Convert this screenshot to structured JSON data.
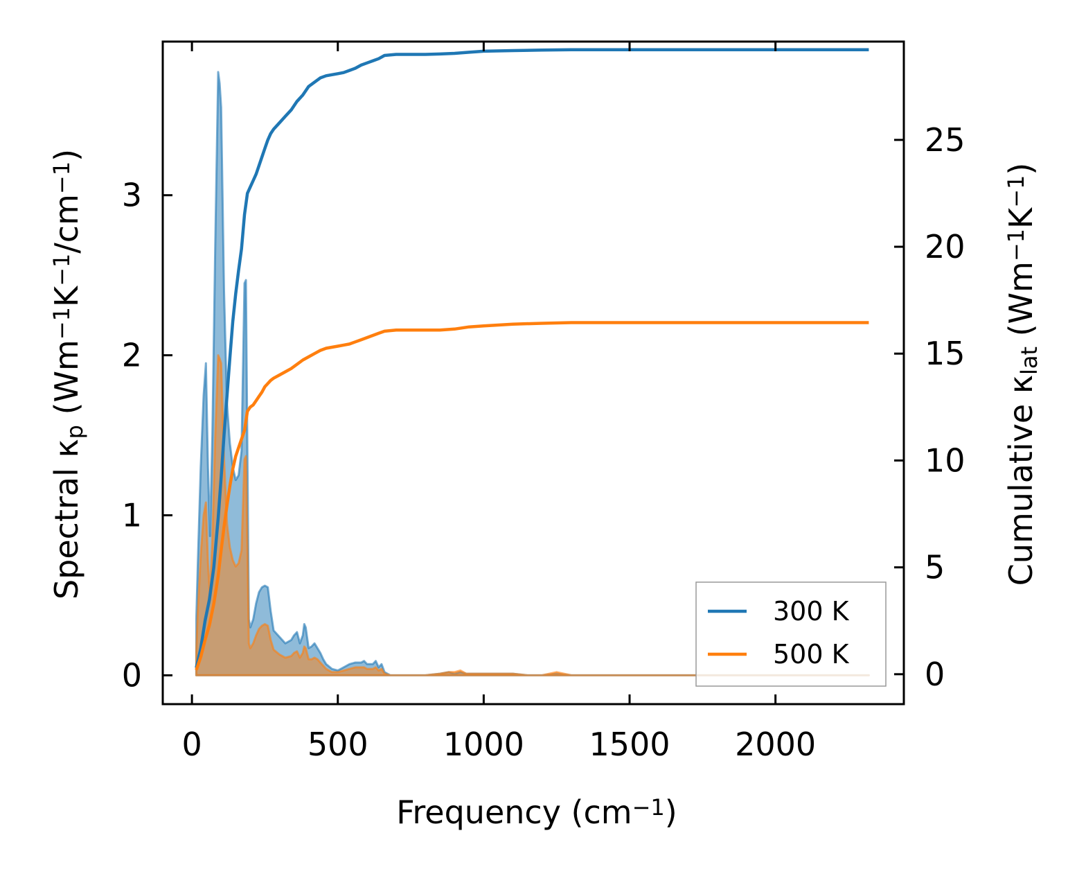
{
  "chart_data": {
    "type": "line",
    "xlabel": "Frequency (cm",
    "xlabel_sup": "−1",
    "xlabel_end": ")",
    "ylabel_left": {
      "pre": "Spectral κ",
      "sub": "p",
      "mid1": " (Wm",
      "sup1": "−1",
      "mid2": "K",
      "sup2": "−1",
      "mid3": "/cm",
      "sup3": "−1",
      "end": ")"
    },
    "ylabel_right": {
      "pre": "Cumulative κ",
      "sub": "lat",
      "mid1": " (Wm",
      "sup1": "−1",
      "mid2": "K",
      "sup2": "−1",
      "end": ")"
    },
    "xlim": [
      -100,
      2440
    ],
    "ylim_left": [
      -0.18,
      3.96
    ],
    "ylim_right": [
      -1.4,
      29.6
    ],
    "xticks": [
      0,
      500,
      1000,
      1500,
      2000
    ],
    "xtick_labels": [
      "0",
      "500",
      "1000",
      "1500",
      "2000"
    ],
    "yticks_left": [
      0,
      1,
      2,
      3
    ],
    "ytick_left_labels": [
      "0",
      "1",
      "2",
      "3"
    ],
    "yticks_right": [
      0,
      5,
      10,
      15,
      20,
      25
    ],
    "ytick_right_labels": [
      "0",
      "5",
      "10",
      "15",
      "20",
      "25"
    ],
    "grid": false,
    "legend_position": "bottom-right",
    "colors": {
      "s300": "#1f77b4",
      "s500": "#ff7f0e"
    },
    "spectral": [
      {
        "name": "300 K",
        "x": [
          15,
          20,
          30,
          40,
          48,
          55,
          62,
          70,
          80,
          90,
          95,
          100,
          110,
          120,
          130,
          140,
          150,
          160,
          170,
          180,
          185,
          190,
          195,
          200,
          210,
          220,
          230,
          240,
          250,
          260,
          270,
          280,
          300,
          320,
          340,
          350,
          360,
          370,
          380,
          385,
          390,
          400,
          410,
          420,
          430,
          440,
          450,
          460,
          480,
          500,
          520,
          540,
          560,
          580,
          590,
          600,
          620,
          630,
          640,
          650,
          660,
          680,
          700,
          750,
          800,
          850,
          880,
          900,
          920,
          940,
          960,
          1000,
          1050,
          1100,
          1150,
          1200,
          1250,
          1300,
          1400,
          1600,
          1800,
          2000,
          2200,
          2320
        ],
        "y": [
          0.35,
          0.7,
          1.3,
          1.75,
          1.95,
          1.3,
          0.87,
          1.5,
          2.7,
          3.77,
          3.7,
          3.55,
          2.4,
          1.7,
          1.45,
          1.3,
          1.22,
          1.25,
          1.4,
          2.45,
          2.47,
          1.4,
          0.35,
          0.3,
          0.35,
          0.45,
          0.52,
          0.55,
          0.56,
          0.55,
          0.4,
          0.28,
          0.24,
          0.2,
          0.22,
          0.25,
          0.27,
          0.2,
          0.25,
          0.32,
          0.3,
          0.17,
          0.18,
          0.2,
          0.17,
          0.14,
          0.1,
          0.07,
          0.04,
          0.03,
          0.05,
          0.07,
          0.08,
          0.08,
          0.09,
          0.07,
          0.07,
          0.09,
          0.05,
          0.07,
          0.02,
          0.0,
          0.0,
          0.0,
          0.0,
          0.01,
          0.02,
          0.01,
          0.02,
          0.01,
          0.01,
          0.01,
          0.01,
          0.01,
          0.0,
          0.0,
          0.01,
          0.0,
          0.0,
          0.0,
          0.0,
          0.0,
          0.0,
          0.0
        ]
      },
      {
        "name": "500 K",
        "x": [
          15,
          20,
          30,
          40,
          48,
          55,
          62,
          70,
          80,
          90,
          95,
          100,
          110,
          120,
          130,
          140,
          150,
          160,
          170,
          180,
          185,
          190,
          195,
          200,
          210,
          220,
          230,
          240,
          250,
          260,
          270,
          280,
          300,
          320,
          340,
          350,
          360,
          370,
          380,
          385,
          390,
          400,
          410,
          420,
          430,
          440,
          450,
          460,
          480,
          500,
          520,
          540,
          560,
          580,
          590,
          600,
          620,
          630,
          640,
          650,
          660,
          680,
          700,
          750,
          800,
          850,
          880,
          900,
          920,
          940,
          960,
          1000,
          1050,
          1100,
          1150,
          1200,
          1250,
          1300,
          1400,
          1600,
          1800,
          2000,
          2200,
          2320
        ],
        "y": [
          0.15,
          0.4,
          0.75,
          1.0,
          1.08,
          0.7,
          0.5,
          0.85,
          1.5,
          2.0,
          1.98,
          1.95,
          1.35,
          0.95,
          0.8,
          0.72,
          0.68,
          0.7,
          0.78,
          1.35,
          1.37,
          0.8,
          0.2,
          0.17,
          0.2,
          0.25,
          0.29,
          0.31,
          0.32,
          0.31,
          0.22,
          0.16,
          0.13,
          0.11,
          0.12,
          0.14,
          0.15,
          0.11,
          0.14,
          0.18,
          0.17,
          0.1,
          0.1,
          0.11,
          0.1,
          0.08,
          0.06,
          0.04,
          0.02,
          0.02,
          0.03,
          0.04,
          0.05,
          0.05,
          0.05,
          0.04,
          0.04,
          0.05,
          0.03,
          0.04,
          0.01,
          0.0,
          0.0,
          0.0,
          0.0,
          0.01,
          0.02,
          0.02,
          0.03,
          0.01,
          0.01,
          0.01,
          0.01,
          0.01,
          0.0,
          0.0,
          0.02,
          0.0,
          0.0,
          0.0,
          0.0,
          0.0,
          0.0,
          0.0
        ]
      }
    ],
    "series": [
      {
        "name": "300 K",
        "x": [
          15,
          30,
          45,
          60,
          75,
          90,
          100,
          110,
          120,
          130,
          140,
          150,
          160,
          170,
          180,
          190,
          200,
          210,
          220,
          230,
          240,
          250,
          260,
          270,
          280,
          300,
          320,
          340,
          360,
          380,
          400,
          420,
          440,
          460,
          480,
          500,
          520,
          540,
          560,
          580,
          600,
          620,
          640,
          660,
          700,
          750,
          800,
          850,
          900,
          950,
          1000,
          1100,
          1200,
          1300,
          1500,
          1800,
          2000,
          2320
        ],
        "y": [
          0.3,
          1.2,
          2.5,
          3.5,
          5.0,
          7.3,
          9.2,
          11.2,
          13.0,
          14.8,
          16.5,
          17.8,
          18.9,
          19.9,
          21.5,
          22.5,
          22.8,
          23.1,
          23.4,
          23.8,
          24.2,
          24.6,
          25.0,
          25.3,
          25.5,
          25.8,
          26.1,
          26.4,
          26.8,
          27.1,
          27.5,
          27.7,
          27.9,
          28.0,
          28.05,
          28.1,
          28.15,
          28.25,
          28.35,
          28.5,
          28.6,
          28.7,
          28.8,
          28.95,
          29.0,
          29.0,
          29.0,
          29.02,
          29.05,
          29.1,
          29.15,
          29.18,
          29.2,
          29.22,
          29.22,
          29.22,
          29.22,
          29.22
        ]
      },
      {
        "name": "500 K",
        "x": [
          15,
          30,
          45,
          60,
          75,
          90,
          100,
          110,
          120,
          130,
          140,
          150,
          160,
          170,
          180,
          190,
          200,
          210,
          220,
          230,
          240,
          250,
          260,
          270,
          280,
          300,
          320,
          340,
          360,
          380,
          400,
          420,
          440,
          460,
          480,
          500,
          520,
          540,
          560,
          580,
          600,
          620,
          640,
          660,
          700,
          750,
          800,
          850,
          900,
          950,
          1000,
          1100,
          1200,
          1300,
          1500,
          1800,
          2000,
          2320
        ],
        "y": [
          0.2,
          0.8,
          1.6,
          2.3,
          3.3,
          4.6,
          5.8,
          6.9,
          7.9,
          8.8,
          9.6,
          10.2,
          10.6,
          11.0,
          11.4,
          12.3,
          12.5,
          12.6,
          12.8,
          13.0,
          13.2,
          13.45,
          13.6,
          13.75,
          13.85,
          14.0,
          14.15,
          14.3,
          14.5,
          14.7,
          14.85,
          15.0,
          15.15,
          15.25,
          15.3,
          15.35,
          15.4,
          15.45,
          15.55,
          15.65,
          15.75,
          15.85,
          15.95,
          16.05,
          16.1,
          16.1,
          16.1,
          16.1,
          16.15,
          16.25,
          16.3,
          16.38,
          16.42,
          16.45,
          16.45,
          16.45,
          16.45,
          16.45
        ]
      }
    ]
  }
}
